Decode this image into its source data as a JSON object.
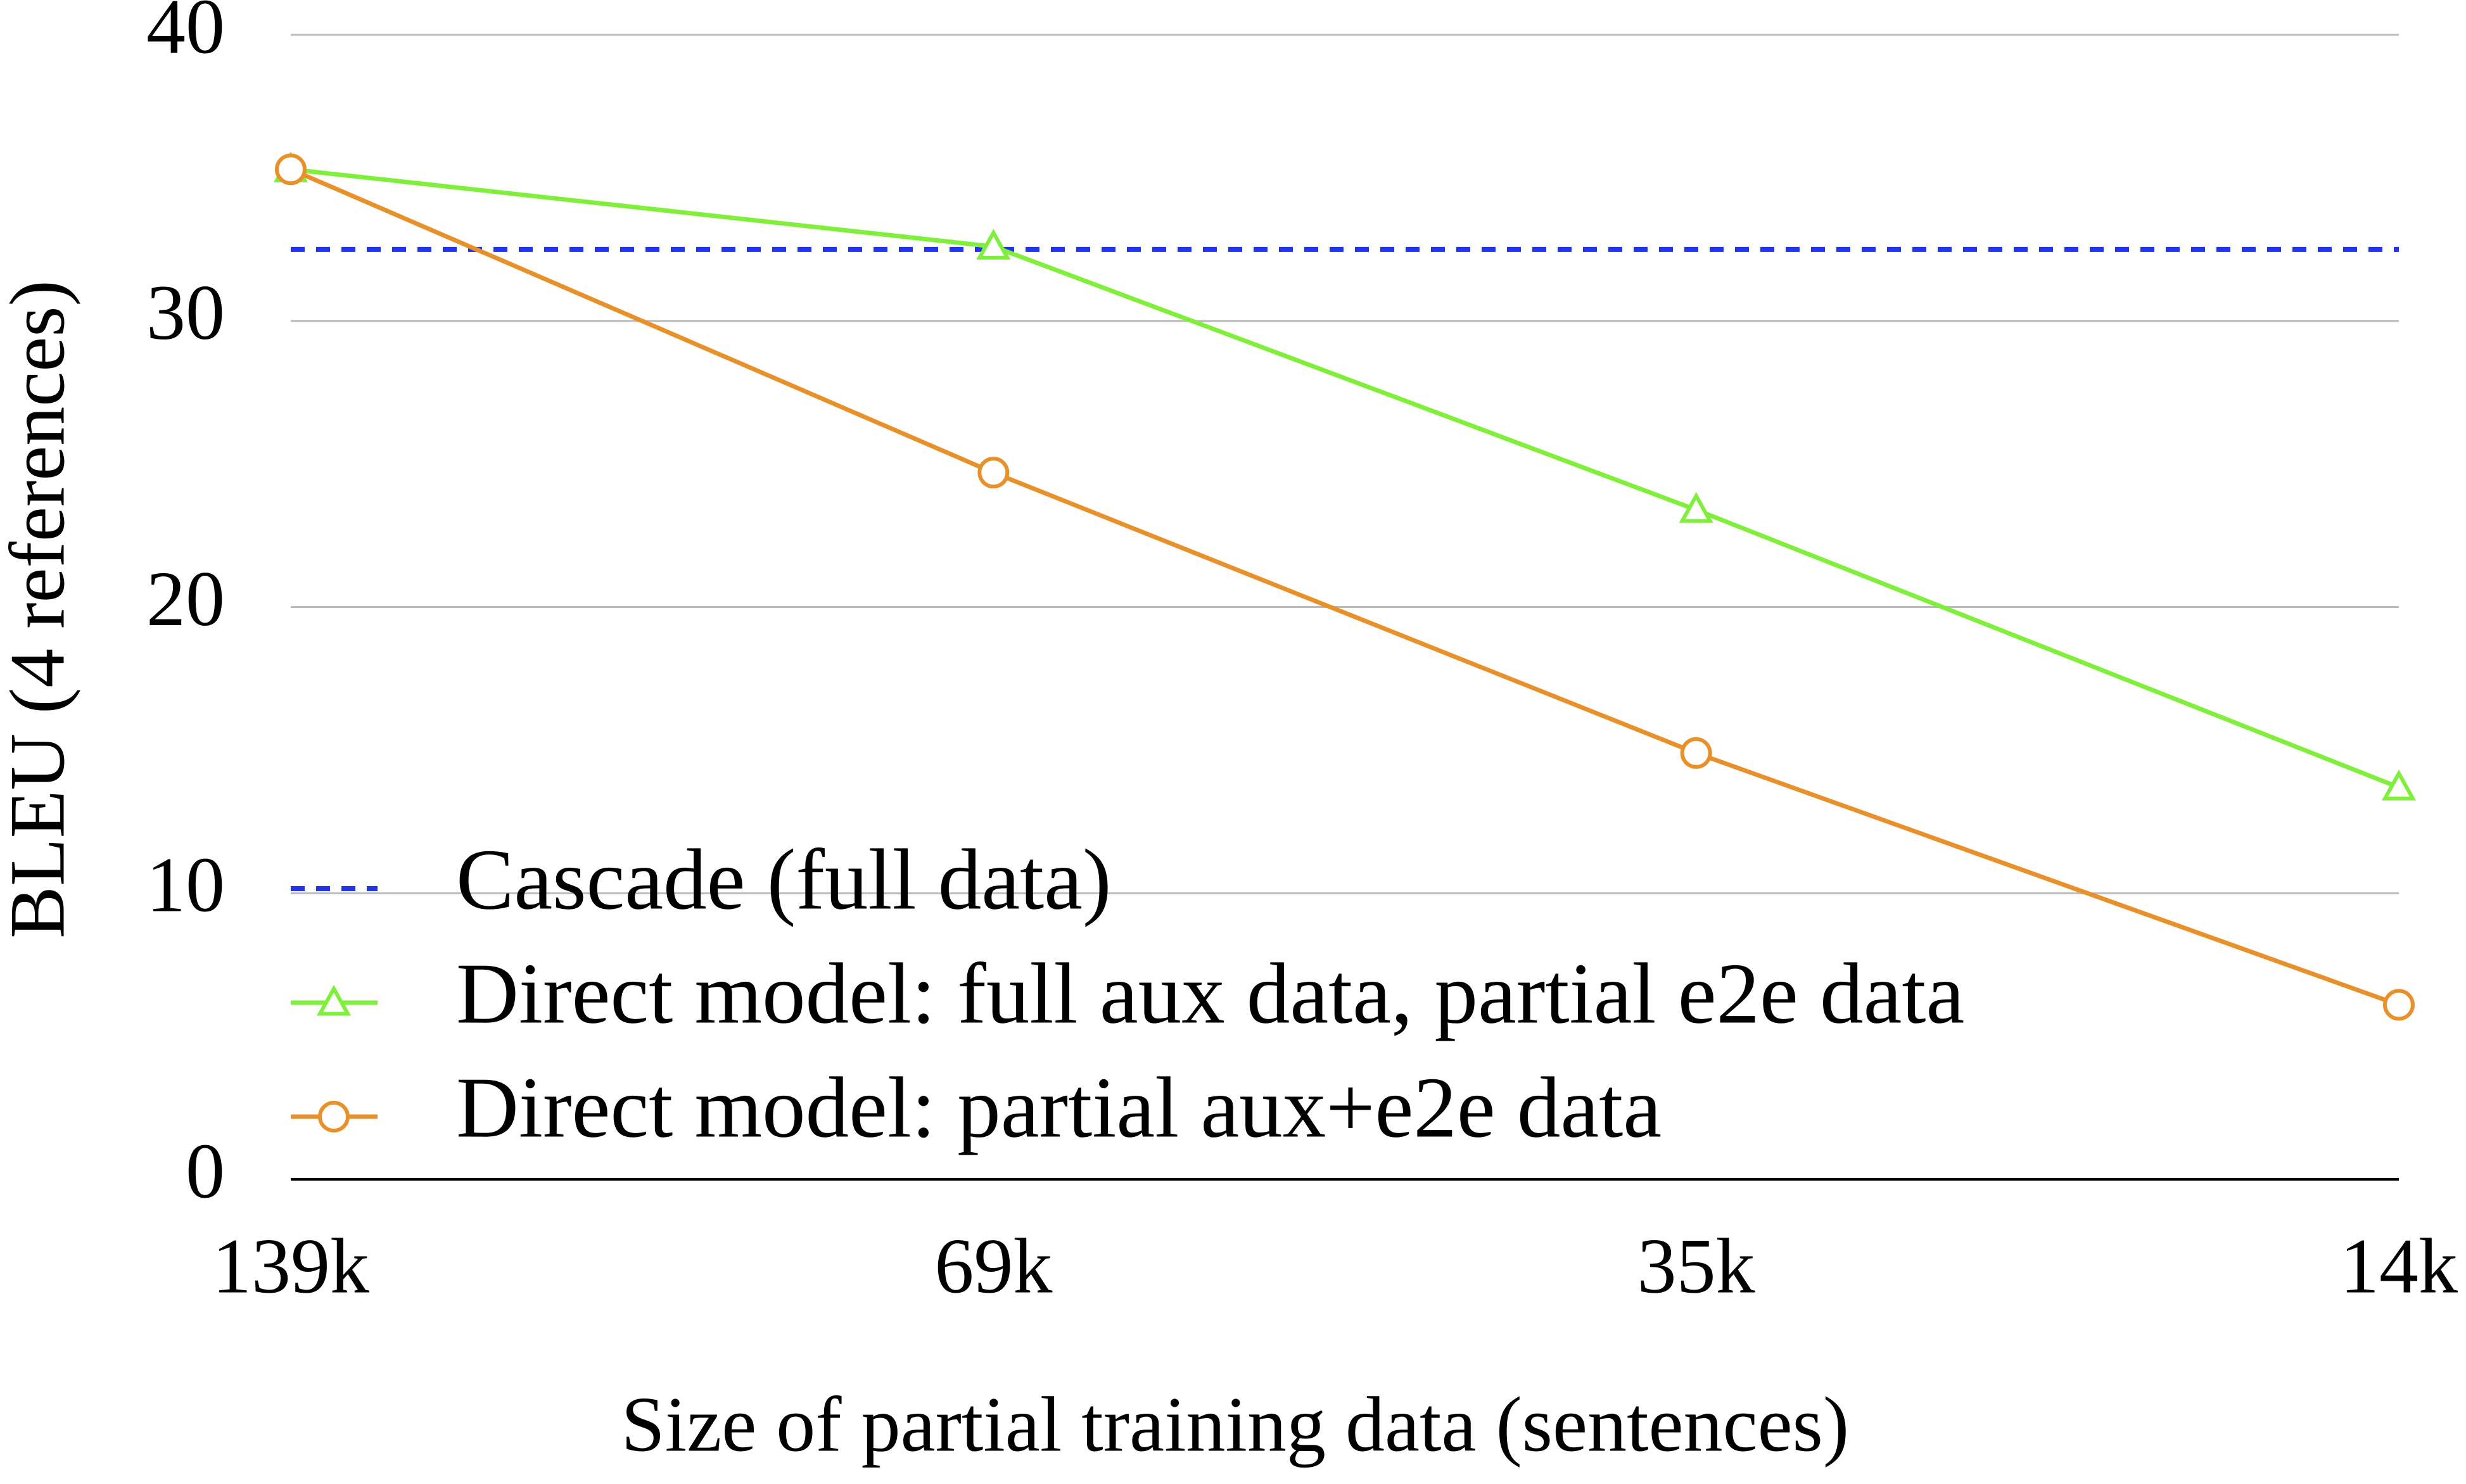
{
  "chart_data": {
    "type": "line",
    "x_label": "Size of partial training data (sentences)",
    "y_label": "BLEU (4 references)",
    "categories": [
      "139k",
      "69k",
      "35k",
      "14k"
    ],
    "series": [
      {
        "name": "Cascade (full data)",
        "color": "#2233ee",
        "dashed": true,
        "marker": "none",
        "values": [
          32.5,
          32.5,
          32.5,
          32.5
        ]
      },
      {
        "name": "Direct model: full aux data, partial e2e data",
        "color": "#80ef3c",
        "dashed": false,
        "marker": "triangle",
        "values": [
          35.3,
          32.6,
          23.4,
          13.7
        ]
      },
      {
        "name": "Direct model: partial aux+e2e data",
        "color": "#e8902a",
        "dashed": false,
        "marker": "circle",
        "values": [
          35.3,
          24.7,
          14.9,
          6.1
        ]
      }
    ],
    "ylim": [
      0,
      40
    ],
    "yticks": [
      0,
      10,
      20,
      30,
      40
    ],
    "grid": true,
    "legend": "lower-left"
  }
}
